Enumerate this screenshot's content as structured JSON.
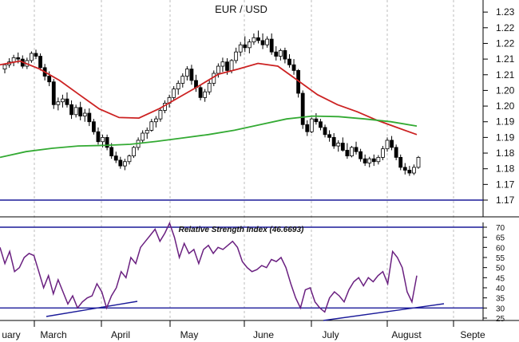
{
  "chart_data": [
    {
      "type": "candlestick",
      "title": "EUR / USD",
      "y_tick_labels": [
        "1.23",
        "1.22",
        "1.22",
        "1.21",
        "1.21",
        "1.20",
        "1.20",
        "1.19",
        "1.19",
        "1.18",
        "1.18",
        "1.17",
        "1.17"
      ],
      "y_tick_values": [
        1.23,
        1.2245,
        1.219,
        1.2135,
        1.208,
        1.2025,
        1.197,
        1.1915,
        1.186,
        1.1805,
        1.175,
        1.1695,
        1.164
      ],
      "ylim": [
        1.164,
        1.232
      ],
      "x_months": [
        "uary",
        "March",
        "April",
        "May",
        "June",
        "July",
        "August",
        "Septe"
      ],
      "support_line_y": 1.164,
      "ohlc": [
        [
          1.21,
          1.212,
          1.2085,
          1.2115
        ],
        [
          1.2115,
          1.2138,
          1.2105,
          1.2125
        ],
        [
          1.2125,
          1.215,
          1.211,
          1.214
        ],
        [
          1.214,
          1.2158,
          1.212,
          1.2135
        ],
        [
          1.2135,
          1.2148,
          1.2102,
          1.211
        ],
        [
          1.211,
          1.214,
          1.21,
          1.213
        ],
        [
          1.213,
          1.2162,
          1.2122,
          1.2155
        ],
        [
          1.2155,
          1.2168,
          1.2135,
          1.2145
        ],
        [
          1.2145,
          1.2155,
          1.2095,
          1.2105
        ],
        [
          1.2105,
          1.2118,
          1.206,
          1.2075
        ],
        [
          1.2075,
          1.2092,
          1.204,
          1.2055
        ],
        [
          1.2055,
          1.2065,
          1.196,
          1.1975
        ],
        [
          1.1975,
          1.2,
          1.1955,
          1.1985
        ],
        [
          1.1985,
          1.201,
          1.1965,
          1.1995
        ],
        [
          1.1995,
          1.2018,
          1.1965,
          1.1975
        ],
        [
          1.1975,
          1.199,
          1.1925,
          1.194
        ],
        [
          1.194,
          1.1975,
          1.193,
          1.1965
        ],
        [
          1.1965,
          1.1985,
          1.192,
          1.1935
        ],
        [
          1.1935,
          1.196,
          1.1915,
          1.1945
        ],
        [
          1.1945,
          1.1962,
          1.19,
          1.1915
        ],
        [
          1.1915,
          1.1925,
          1.187,
          1.188
        ],
        [
          1.188,
          1.1895,
          1.1835,
          1.1845
        ],
        [
          1.1845,
          1.187,
          1.1825,
          1.186
        ],
        [
          1.186,
          1.187,
          1.1815,
          1.1825
        ],
        [
          1.1825,
          1.184,
          1.1785,
          1.1795
        ],
        [
          1.1795,
          1.181,
          1.177,
          1.178
        ],
        [
          1.178,
          1.1792,
          1.175,
          1.176
        ],
        [
          1.176,
          1.1785,
          1.1745,
          1.1775
        ],
        [
          1.1775,
          1.18,
          1.1765,
          1.1795
        ],
        [
          1.1795,
          1.183,
          1.1788,
          1.1825
        ],
        [
          1.1825,
          1.186,
          1.1815,
          1.185
        ],
        [
          1.185,
          1.1885,
          1.184,
          1.1875
        ],
        [
          1.1875,
          1.1895,
          1.1855,
          1.1885
        ],
        [
          1.1885,
          1.1925,
          1.188,
          1.1915
        ],
        [
          1.1915,
          1.1935,
          1.1895,
          1.1925
        ],
        [
          1.1925,
          1.1965,
          1.1915,
          1.1955
        ],
        [
          1.1955,
          1.199,
          1.1945,
          1.198
        ],
        [
          1.198,
          1.201,
          1.1965,
          1.2
        ],
        [
          1.2,
          1.204,
          1.199,
          1.203
        ],
        [
          1.203,
          1.206,
          1.201,
          1.205
        ],
        [
          1.205,
          1.2085,
          1.2035,
          1.2075
        ],
        [
          1.2075,
          1.211,
          1.206,
          1.21
        ],
        [
          1.21,
          1.2115,
          1.2045,
          1.206
        ],
        [
          1.206,
          1.208,
          1.202,
          1.2035
        ],
        [
          1.2035,
          1.2045,
          1.199,
          1.2
        ],
        [
          1.2,
          1.203,
          1.1985,
          1.202
        ],
        [
          1.202,
          1.206,
          1.201,
          1.205
        ],
        [
          1.205,
          1.2095,
          1.204,
          1.2085
        ],
        [
          1.2085,
          1.212,
          1.207,
          1.211
        ],
        [
          1.211,
          1.214,
          1.209,
          1.2125
        ],
        [
          1.2125,
          1.2138,
          1.208,
          1.2095
        ],
        [
          1.2095,
          1.2135,
          1.2085,
          1.213
        ],
        [
          1.213,
          1.2175,
          1.212,
          1.216
        ],
        [
          1.216,
          1.2195,
          1.2145,
          1.2185
        ],
        [
          1.2185,
          1.2215,
          1.216,
          1.2175
        ],
        [
          1.2175,
          1.2205,
          1.2155,
          1.2195
        ],
        [
          1.2195,
          1.2225,
          1.2185,
          1.221
        ],
        [
          1.221,
          1.2235,
          1.219,
          1.22
        ],
        [
          1.22,
          1.2225,
          1.217,
          1.2185
        ],
        [
          1.2185,
          1.2215,
          1.2175,
          1.2205
        ],
        [
          1.2205,
          1.2225,
          1.215,
          1.216
        ],
        [
          1.216,
          1.218,
          1.213,
          1.2145
        ],
        [
          1.2145,
          1.2172,
          1.213,
          1.2165
        ],
        [
          1.2165,
          1.2175,
          1.212,
          1.2135
        ],
        [
          1.2135,
          1.2152,
          1.2105,
          1.2115
        ],
        [
          1.2115,
          1.2135,
          1.208,
          1.2095
        ],
        [
          1.2095,
          1.21,
          1.2,
          1.2015
        ],
        [
          1.2015,
          1.2025,
          1.189,
          1.1905
        ],
        [
          1.1905,
          1.192,
          1.1865,
          1.188
        ],
        [
          1.188,
          1.193,
          1.1875,
          1.1925
        ],
        [
          1.1925,
          1.1945,
          1.1905,
          1.1915
        ],
        [
          1.1915,
          1.1925,
          1.1885,
          1.1895
        ],
        [
          1.1895,
          1.1905,
          1.186,
          1.187
        ],
        [
          1.187,
          1.1885,
          1.1845,
          1.186
        ],
        [
          1.186,
          1.1875,
          1.182,
          1.183
        ],
        [
          1.183,
          1.185,
          1.181,
          1.184
        ],
        [
          1.184,
          1.186,
          1.181,
          1.1815
        ],
        [
          1.1815,
          1.184,
          1.1785,
          1.1795
        ],
        [
          1.1795,
          1.183,
          1.179,
          1.1825
        ],
        [
          1.1825,
          1.1845,
          1.18,
          1.181
        ],
        [
          1.181,
          1.182,
          1.1775,
          1.1785
        ],
        [
          1.1785,
          1.18,
          1.176,
          1.177
        ],
        [
          1.177,
          1.1792,
          1.1755,
          1.1785
        ],
        [
          1.1785,
          1.18,
          1.176,
          1.1775
        ],
        [
          1.1775,
          1.1798,
          1.1765,
          1.179
        ],
        [
          1.179,
          1.183,
          1.178,
          1.182
        ],
        [
          1.182,
          1.186,
          1.181,
          1.185
        ],
        [
          1.185,
          1.1865,
          1.1815,
          1.1825
        ],
        [
          1.1825,
          1.1835,
          1.178,
          1.179
        ],
        [
          1.179,
          1.18,
          1.1745,
          1.1755
        ],
        [
          1.1755,
          1.177,
          1.173,
          1.1745
        ],
        [
          1.1745,
          1.176,
          1.1725,
          1.1735
        ],
        [
          1.1735,
          1.1765,
          1.1728,
          1.1755
        ],
        [
          1.1755,
          1.1795,
          1.175,
          1.179
        ]
      ],
      "moving_averages": [
        {
          "color": "#cc2222",
          "values": [
            1.2115,
            1.2128,
            1.21,
            1.206,
            1.201,
            1.196,
            1.193,
            1.1928,
            1.196,
            1.2,
            1.204,
            1.2082,
            1.21,
            1.212,
            1.211,
            1.206,
            1.201,
            1.1975,
            1.195,
            1.192,
            1.1895,
            1.187
          ]
        },
        {
          "color": "#33aa33",
          "values": [
            1.179,
            1.181,
            1.1822,
            1.183,
            1.1832,
            1.1836,
            1.1846,
            1.1858,
            1.187,
            1.1885,
            1.1905,
            1.1925,
            1.1935,
            1.1933,
            1.1925,
            1.1915,
            1.19
          ]
        }
      ]
    },
    {
      "type": "line",
      "title": "Relative Strength Index (46.6693)",
      "y_tick_labels": [
        "70",
        "65",
        "60",
        "55",
        "50",
        "45",
        "40",
        "35",
        "30",
        "25"
      ],
      "y_tick_values": [
        70,
        65,
        60,
        55,
        50,
        45,
        40,
        35,
        30,
        25
      ],
      "ylim": [
        25,
        70
      ],
      "reference_lines": [
        70,
        30
      ],
      "series": [
        {
          "color": "#6a2080",
          "values": [
            60,
            52,
            58,
            48,
            50,
            55,
            57,
            56,
            48,
            40,
            46,
            37,
            44,
            38,
            32,
            36,
            30,
            33,
            35,
            36,
            42,
            38,
            30,
            36,
            40,
            48,
            45,
            55,
            52,
            60,
            63,
            66,
            69,
            63,
            67,
            72,
            65,
            55,
            62,
            57,
            59,
            52,
            59,
            61,
            57,
            60,
            59,
            61,
            63,
            60,
            53,
            50,
            48,
            49,
            51,
            50,
            54,
            53,
            55,
            50,
            42,
            35,
            30,
            39,
            40,
            33,
            30,
            28,
            35,
            38,
            36,
            33,
            39,
            43,
            45,
            41,
            45,
            43,
            46,
            48,
            42,
            58,
            55,
            50,
            38,
            33,
            46
          ]
        }
      ]
    }
  ]
}
